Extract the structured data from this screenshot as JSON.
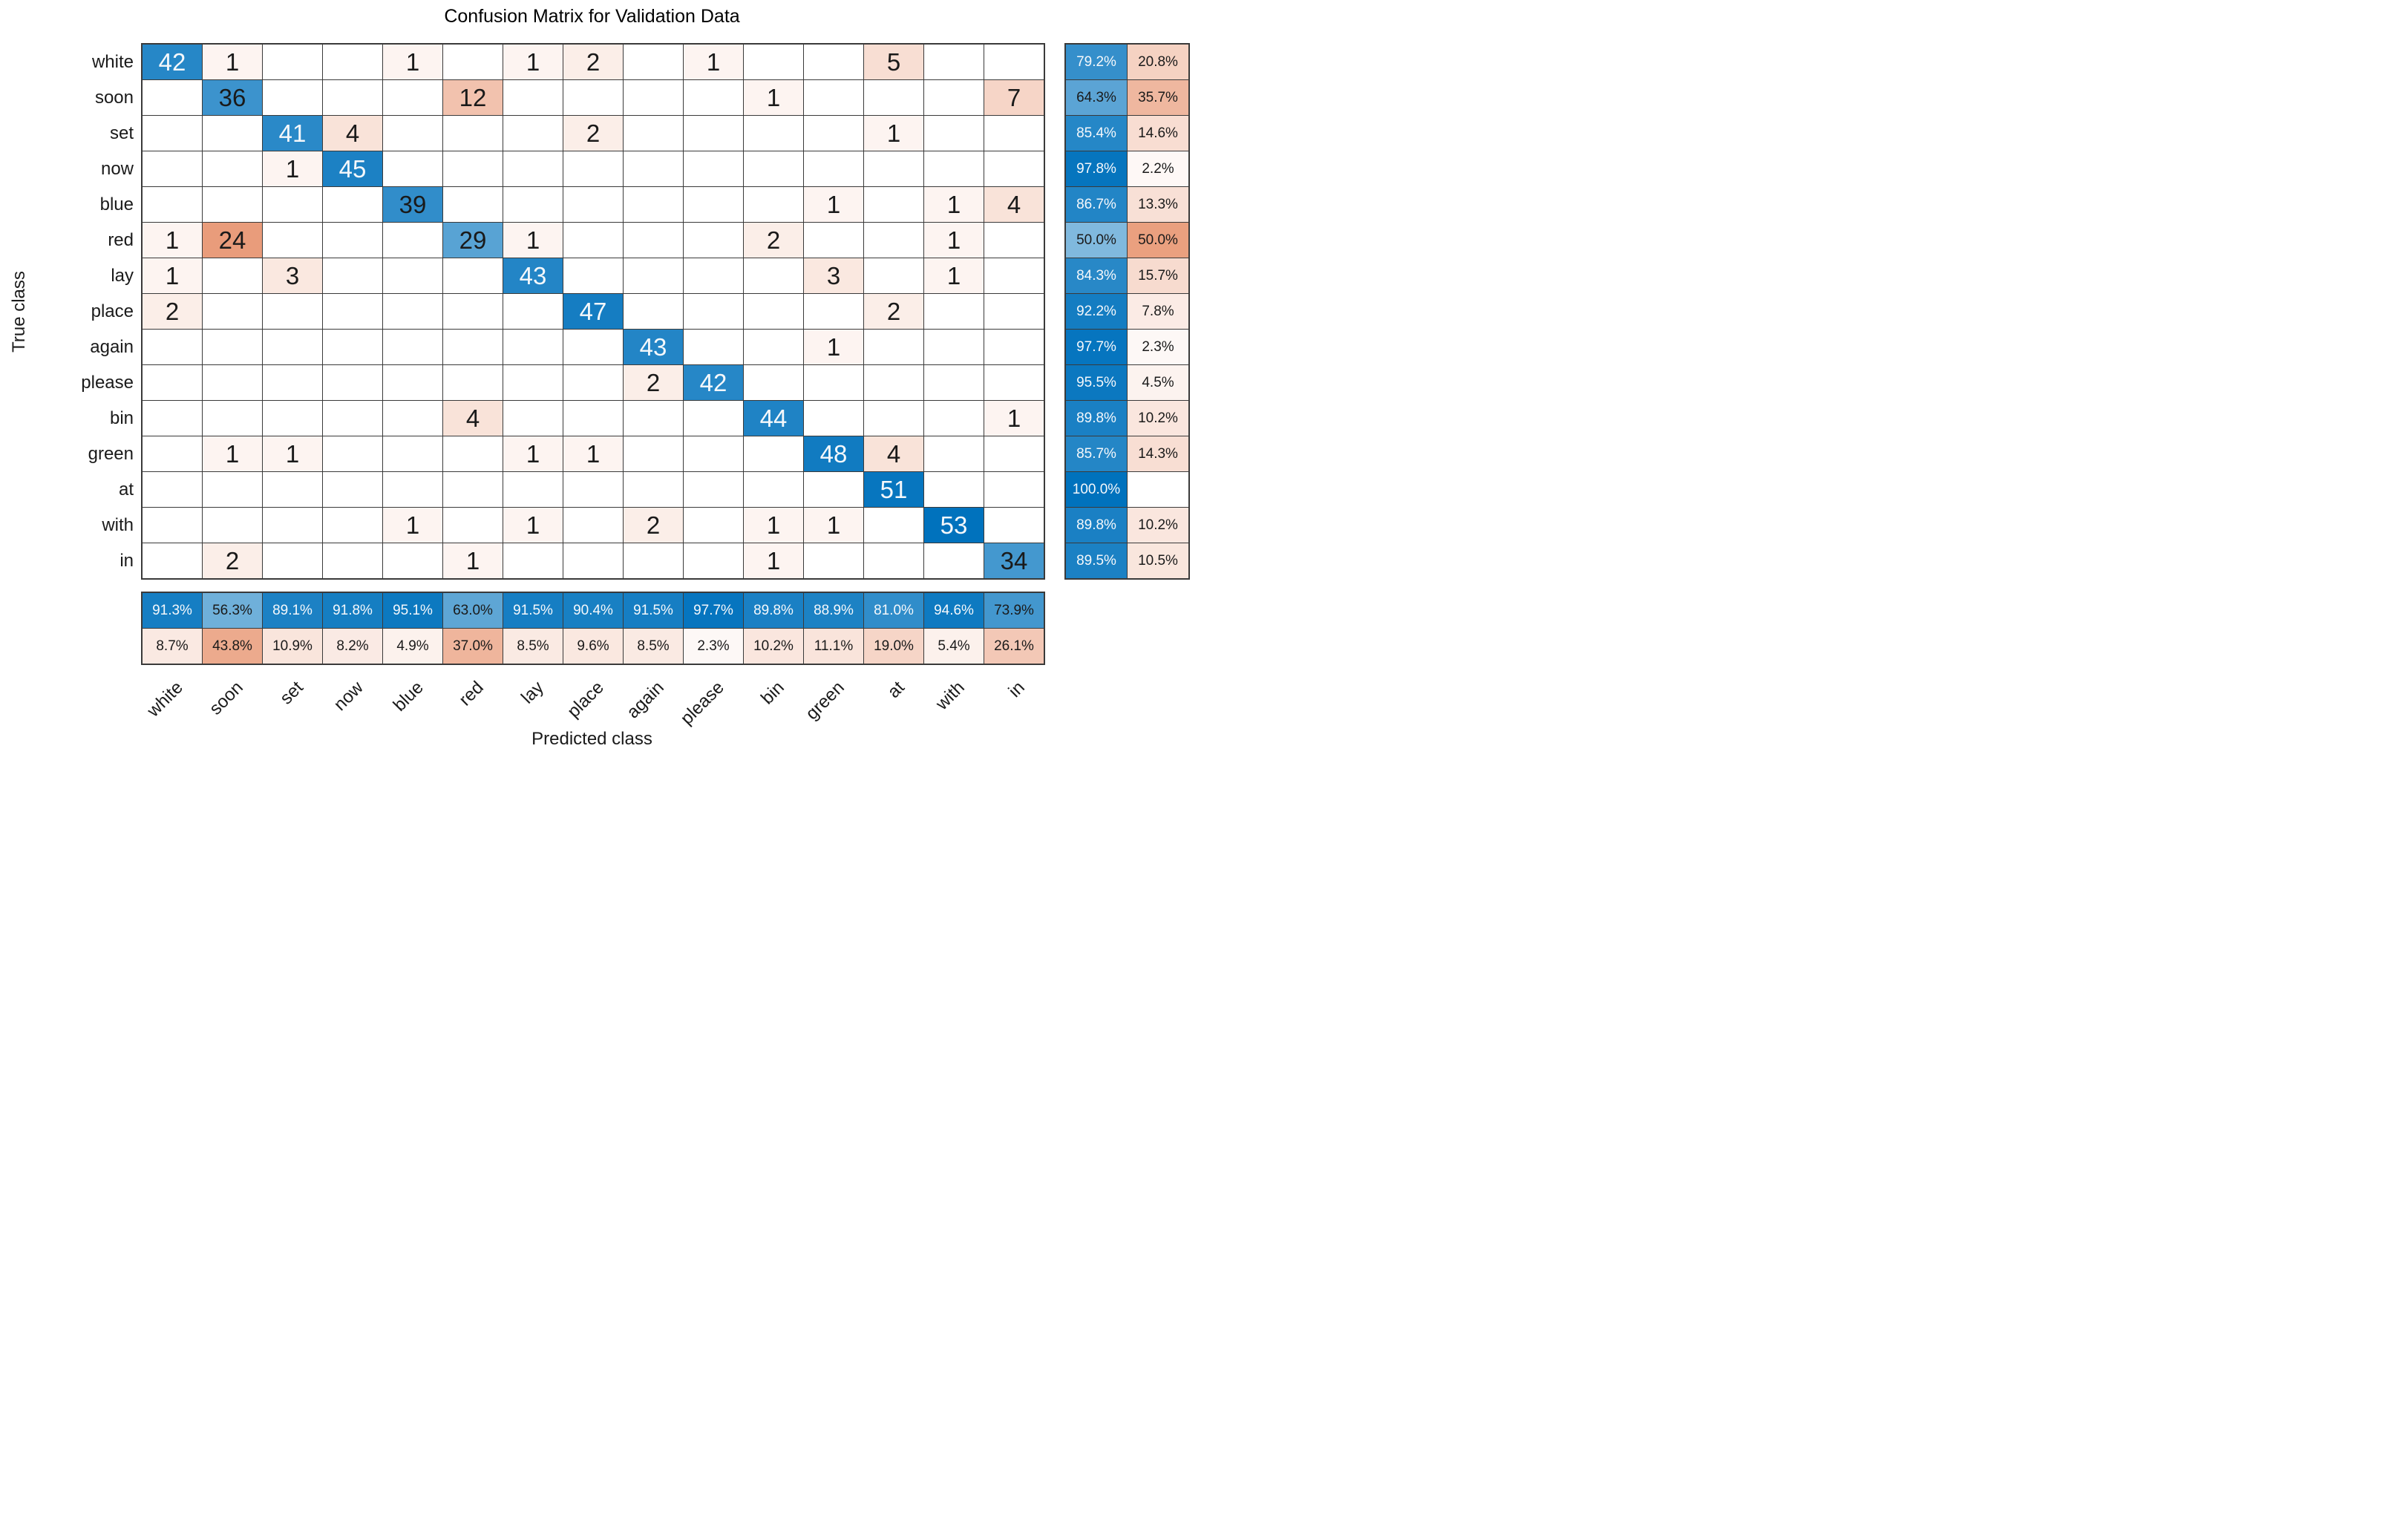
{
  "figure": {
    "title": "Confusion Matrix for Validation Data",
    "x_axis_label": "Predicted class",
    "y_axis_label": "True class"
  },
  "chart_data": {
    "type": "heatmap",
    "subtype": "confusion-matrix",
    "title": "Confusion Matrix for Validation Data",
    "xlabel": "Predicted class",
    "ylabel": "True class",
    "classes": [
      "white",
      "soon",
      "set",
      "now",
      "blue",
      "red",
      "lay",
      "place",
      "again",
      "please",
      "bin",
      "green",
      "at",
      "with",
      "in"
    ],
    "matrix": [
      [
        42,
        1,
        0,
        0,
        1,
        0,
        1,
        2,
        0,
        1,
        0,
        0,
        5,
        0,
        0
      ],
      [
        0,
        36,
        0,
        0,
        0,
        12,
        0,
        0,
        0,
        0,
        1,
        0,
        0,
        0,
        7
      ],
      [
        0,
        0,
        41,
        4,
        0,
        0,
        0,
        2,
        0,
        0,
        0,
        0,
        1,
        0,
        0
      ],
      [
        0,
        0,
        1,
        45,
        0,
        0,
        0,
        0,
        0,
        0,
        0,
        0,
        0,
        0,
        0
      ],
      [
        0,
        0,
        0,
        0,
        39,
        0,
        0,
        0,
        0,
        0,
        0,
        1,
        0,
        1,
        4
      ],
      [
        1,
        24,
        0,
        0,
        0,
        29,
        1,
        0,
        0,
        0,
        2,
        0,
        0,
        1,
        0
      ],
      [
        1,
        0,
        3,
        0,
        0,
        0,
        43,
        0,
        0,
        0,
        0,
        3,
        0,
        1,
        0
      ],
      [
        2,
        0,
        0,
        0,
        0,
        0,
        0,
        47,
        0,
        0,
        0,
        0,
        2,
        0,
        0
      ],
      [
        0,
        0,
        0,
        0,
        0,
        0,
        0,
        0,
        43,
        0,
        0,
        1,
        0,
        0,
        0
      ],
      [
        0,
        0,
        0,
        0,
        0,
        0,
        0,
        0,
        2,
        42,
        0,
        0,
        0,
        0,
        0
      ],
      [
        0,
        0,
        0,
        0,
        0,
        4,
        0,
        0,
        0,
        0,
        44,
        0,
        0,
        0,
        1
      ],
      [
        0,
        1,
        1,
        0,
        0,
        0,
        1,
        1,
        0,
        0,
        0,
        48,
        4,
        0,
        0
      ],
      [
        0,
        0,
        0,
        0,
        0,
        0,
        0,
        0,
        0,
        0,
        0,
        0,
        51,
        0,
        0
      ],
      [
        0,
        0,
        0,
        0,
        1,
        0,
        1,
        0,
        2,
        0,
        1,
        1,
        0,
        53,
        0
      ],
      [
        0,
        2,
        0,
        0,
        0,
        1,
        0,
        0,
        0,
        0,
        1,
        0,
        0,
        0,
        34
      ]
    ],
    "max_cell_value": 53,
    "row_summary": [
      [
        "79.2%",
        "20.8%"
      ],
      [
        "64.3%",
        "35.7%"
      ],
      [
        "85.4%",
        "14.6%"
      ],
      [
        "97.8%",
        "2.2%"
      ],
      [
        "86.7%",
        "13.3%"
      ],
      [
        "50.0%",
        "50.0%"
      ],
      [
        "84.3%",
        "15.7%"
      ],
      [
        "92.2%",
        "7.8%"
      ],
      [
        "97.7%",
        "2.3%"
      ],
      [
        "95.5%",
        "4.5%"
      ],
      [
        "89.8%",
        "10.2%"
      ],
      [
        "85.7%",
        "14.3%"
      ],
      [
        "100.0%",
        ""
      ],
      [
        "89.8%",
        "10.2%"
      ],
      [
        "89.5%",
        "10.5%"
      ]
    ],
    "col_summary": [
      [
        "91.3%",
        "8.7%"
      ],
      [
        "56.3%",
        "43.8%"
      ],
      [
        "89.1%",
        "10.9%"
      ],
      [
        "91.8%",
        "8.2%"
      ],
      [
        "95.1%",
        "4.9%"
      ],
      [
        "63.0%",
        "37.0%"
      ],
      [
        "91.5%",
        "8.5%"
      ],
      [
        "90.4%",
        "9.6%"
      ],
      [
        "91.5%",
        "8.5%"
      ],
      [
        "97.7%",
        "2.3%"
      ],
      [
        "89.8%",
        "10.2%"
      ],
      [
        "88.9%",
        "11.1%"
      ],
      [
        "81.0%",
        "19.0%"
      ],
      [
        "94.6%",
        "5.4%"
      ],
      [
        "73.9%",
        "26.1%"
      ]
    ],
    "colors": {
      "diagonal_base": "#0072BD",
      "off_diagonal_base": "#D95319",
      "empty_cell": "#FFFFFF",
      "grid_line": "#3A3A3A",
      "text_dark": "#1A1A1A",
      "text_light": "#F5F8FB"
    },
    "legend_position": "none",
    "grid": true
  }
}
